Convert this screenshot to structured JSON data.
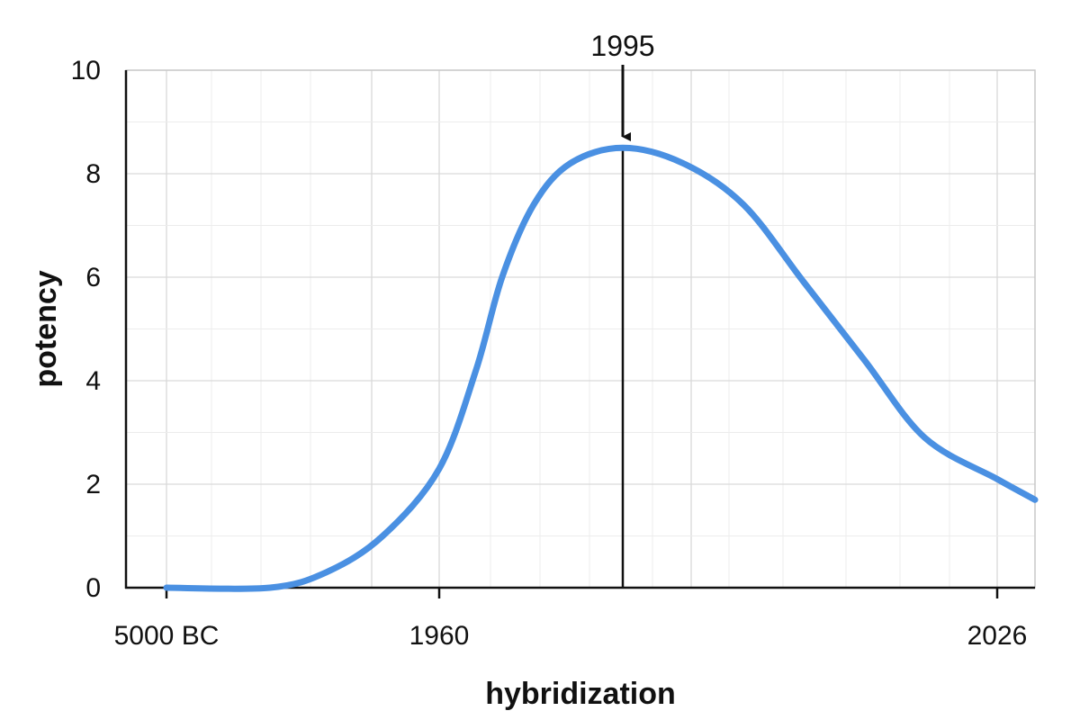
{
  "chart_data": {
    "type": "line",
    "title": "",
    "xlabel": "hybridization",
    "ylabel": "potency",
    "x_ticks": [
      "5000 BC",
      "1960",
      "2026"
    ],
    "y_ticks": [
      0,
      2,
      4,
      6,
      8,
      10
    ],
    "ylim": [
      0,
      10
    ],
    "grid": true,
    "legend": "none",
    "color": "#4a90e2",
    "series": [
      {
        "points": [
          [
            "5000 BC",
            0.0
          ],
          [
            "1930",
            0.0
          ],
          [
            "1940",
            0.3
          ],
          [
            "1950",
            1.0
          ],
          [
            "1960",
            2.3
          ],
          [
            "1967",
            4.2
          ],
          [
            "1972",
            6.0
          ],
          [
            "1978",
            7.4
          ],
          [
            "1985",
            8.2
          ],
          [
            "1995",
            8.5
          ],
          [
            "2000",
            8.2
          ],
          [
            "2005",
            7.4
          ],
          [
            "2010",
            5.9
          ],
          [
            "2015",
            4.4
          ],
          [
            "2020",
            2.9
          ],
          [
            "2026",
            2.1
          ],
          [
            "2032",
            1.7
          ]
        ]
      }
    ],
    "annotation": {
      "x": "1995",
      "label": "1995"
    }
  }
}
